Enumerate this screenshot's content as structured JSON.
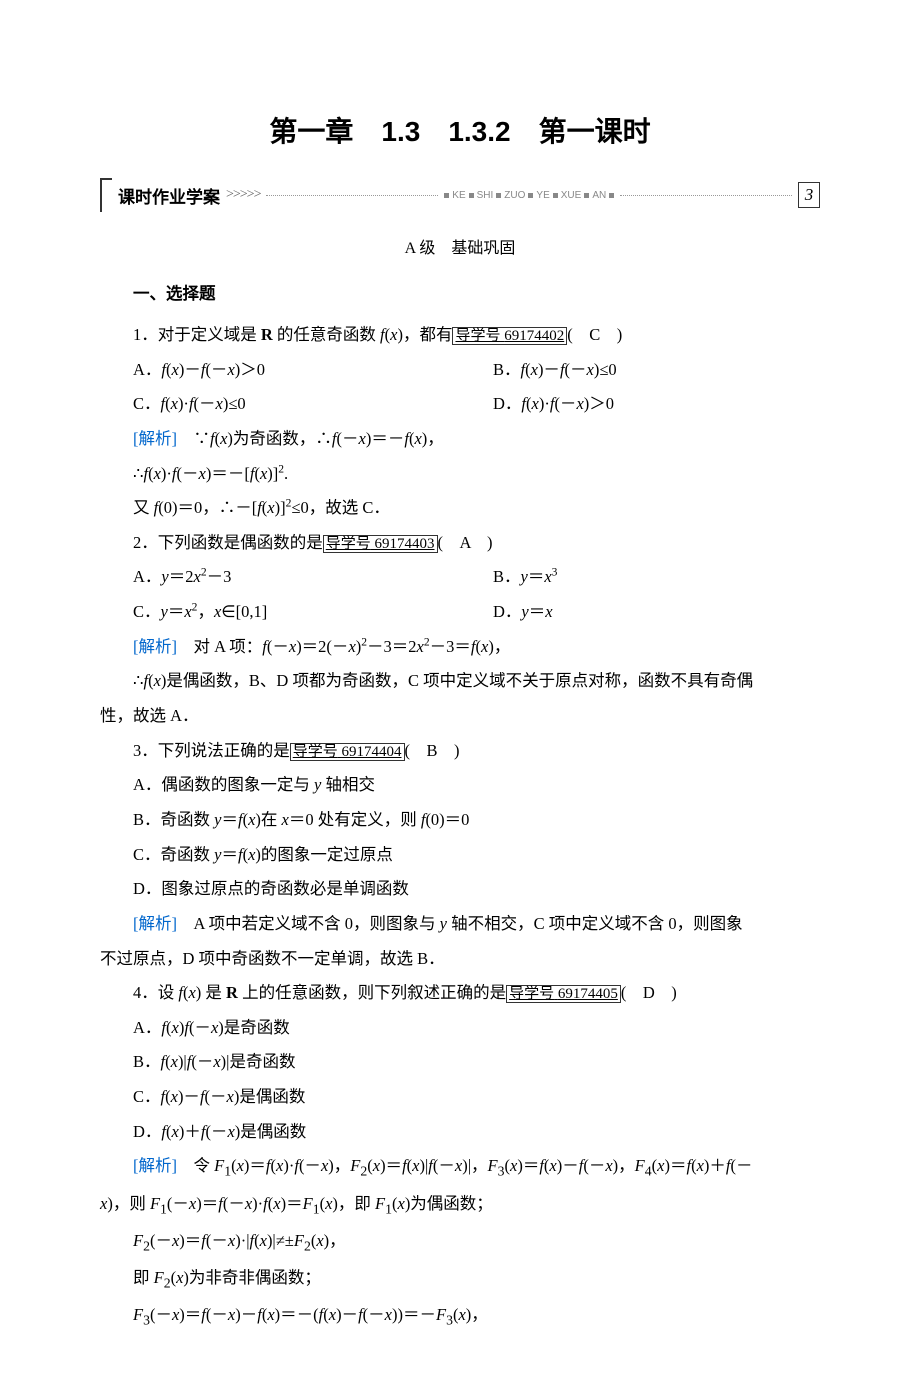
{
  "title": "第一章　1.3　1.3.2　第一课时",
  "banner": {
    "label": "课时作业学案",
    "spell": "KE SHI ZUO YE XUE AN",
    "page_number": "3"
  },
  "level_header": {
    "level": "A 级",
    "label": "基础巩固"
  },
  "section_heading": "一、选择题",
  "daoxue_label": "导学号",
  "jiexi_label": "[解析]",
  "text_color": "#000000",
  "link_color": "#0066cc",
  "background_color": "#ffffff",
  "q1": {
    "stem_pre": "1．对于定义域是 ",
    "stem_bold": "R",
    "stem_post": " 的任意奇函数 ",
    "fn": "f",
    "var": "x",
    "tail": "，都有",
    "daoxue": "69174402",
    "answer": "C",
    "opts": {
      "A": "A．f(x)−f(−x)＞0",
      "B": "B．f(x)−f(−x)≤0",
      "C": "C．f(x)·f(−x)≤0",
      "D": "D．f(x)·f(−x)＞0"
    },
    "sol": [
      "∵f(x)为奇函数，∴f(−x)＝−f(x)，",
      "∴f(x)·f(−x)＝−[f(x)]².",
      "又 f(0)＝0，∴−[f(x)]²≤0，故选 C．"
    ]
  },
  "q2": {
    "stem": "2．下列函数是偶函数的是",
    "daoxue": "69174403",
    "answer": "A",
    "opts": {
      "A": "A．y＝2x²−3",
      "B": "B．y＝x³",
      "C": "C．y＝x²，x∈[0,1]",
      "D": "D．y＝x"
    },
    "sol": [
      "对 A 项：f(−x)＝2(−x)²−3＝2x²−3＝f(x)，",
      "∴f(x)是偶函数，B、D 项都为奇函数，C 项中定义域不关于原点对称，函数不具有奇偶性，故选 A．"
    ]
  },
  "q3": {
    "stem": "3．下列说法正确的是",
    "daoxue": "69174404",
    "answer": "B",
    "opts": {
      "A": "A．偶函数的图象一定与 y 轴相交",
      "B": "B．奇函数 y＝f(x)在 x＝0 处有定义，则 f(0)＝0",
      "C": "C．奇函数 y＝f(x)的图象一定过原点",
      "D": "D．图象过原点的奇函数必是单调函数"
    },
    "sol": [
      "A 项中若定义域不含 0，则图象与 y 轴不相交，C 项中定义域不含 0，则图象不过原点，D 项中奇函数不一定单调，故选 B．"
    ]
  },
  "q4": {
    "stem_pre": "4．设 ",
    "stem_mid": " 是 ",
    "stem_bold": "R",
    "stem_post": " 上的任意函数，则下列叙述正确的是",
    "daoxue": "69174405",
    "answer": "D",
    "opts": {
      "A": "A．f(x)f(−x)是奇函数",
      "B": "B．f(x)|f(−x)|是奇函数",
      "C": "C．f(x)−f(−x)是偶函数",
      "D": "D．f(x)+f(−x)是偶函数"
    },
    "sol": [
      "令 F₁(x)＝f(x)·f(−x)，F₂(x)＝f(x)|f(−x)|，F₃(x)＝f(x)−f(−x)，F₄(x)＝f(x)+f(−x)，则 F₁(−x)＝f(−x)·f(x)＝F₁(x)，即 F₁(x)为偶函数；",
      "F₂(−x)＝f(−x)·|f(x)|≠±F₂(x)，",
      "即 F₂(x)为非奇非偶函数；",
      "F₃(−x)＝f(−x)−f(x)＝−(f(x)−f(−x))＝−F₃(x)，"
    ]
  }
}
